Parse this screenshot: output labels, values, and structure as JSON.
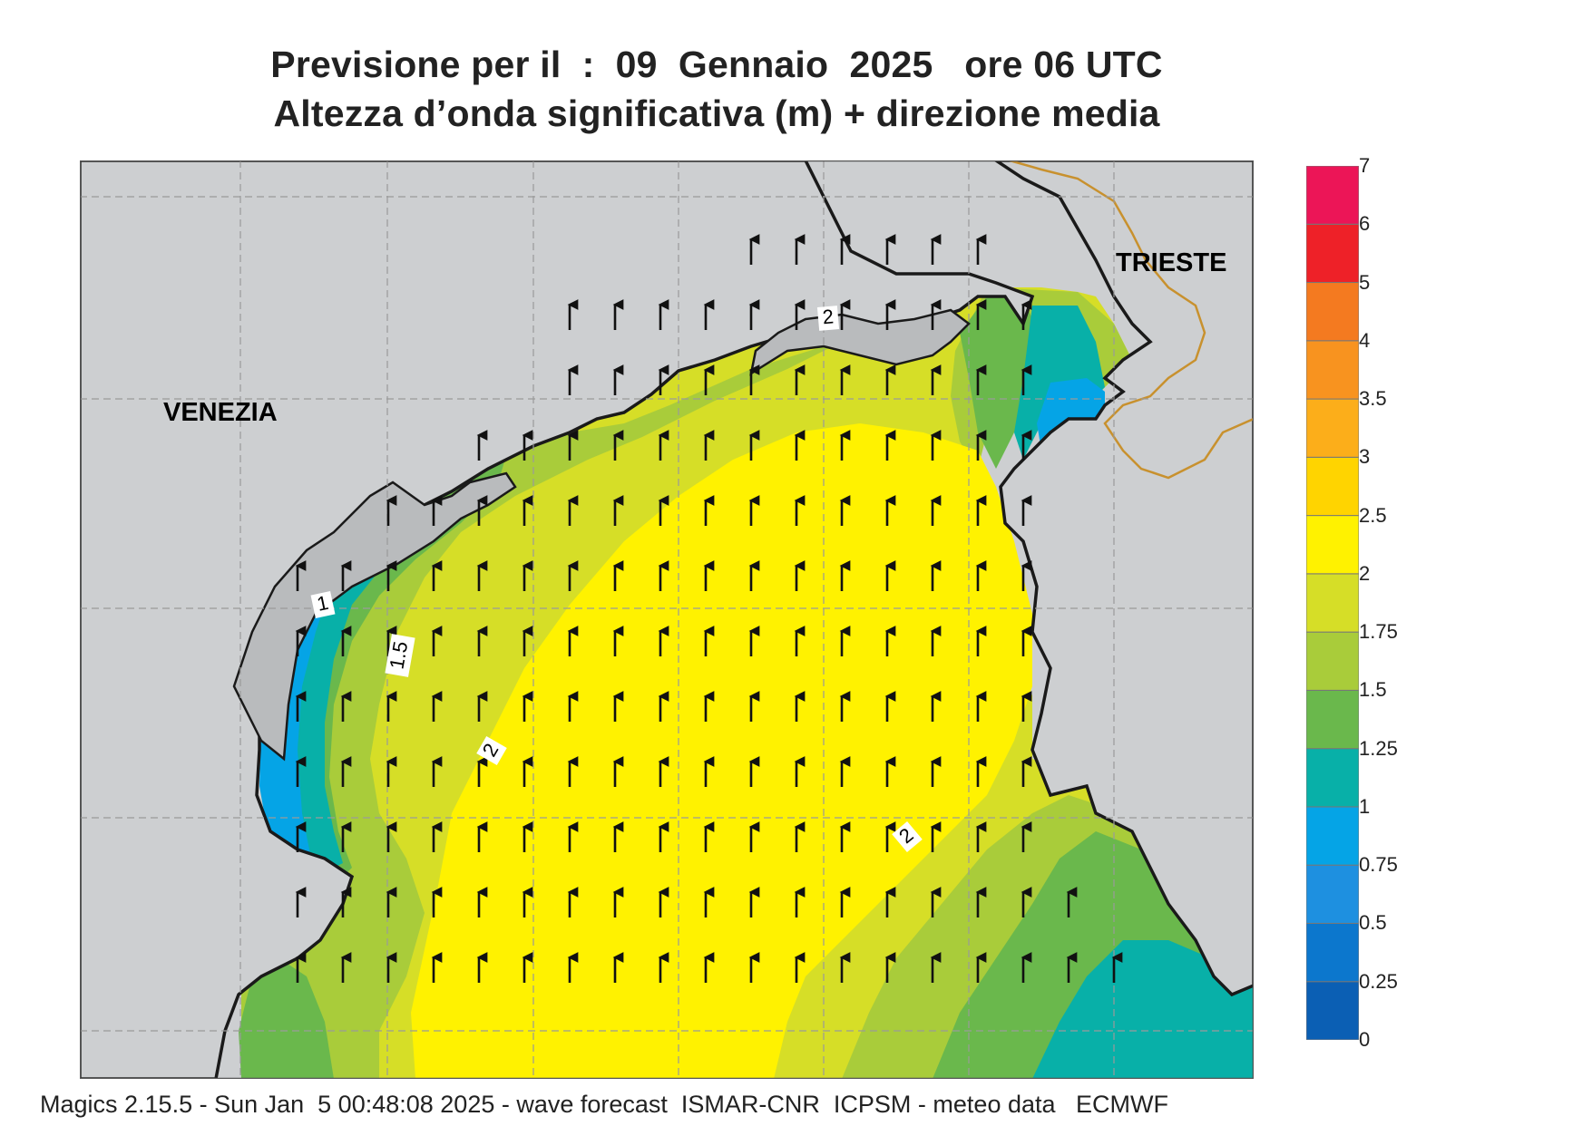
{
  "title_line1": "Previsione per il  :  09  Gennaio  2025   ore 06 UTC",
  "title_line2": "Altezza d’onda significativa (m) + direzione media",
  "footer": "Magics 2.15.5 - Sun Jan  5 00:48:08 2025 - wave forecast  ISMAR-CNR  ICPSM - meteo data   ECMWF",
  "cities": {
    "venezia": "VENEZIA",
    "trieste": "TRIESTE"
  },
  "contour_labels": [
    "1",
    "1.5",
    "2",
    "2",
    "2"
  ],
  "legend": {
    "labels": [
      "0",
      "0.25",
      "0.5",
      "0.75",
      "1",
      "1.25",
      "1.5",
      "1.75",
      "2",
      "2.5",
      "3",
      "3.5",
      "4",
      "5",
      "6",
      "7"
    ],
    "colors": [
      "#0b5fb4",
      "#0c77cd",
      "#1e90e0",
      "#05a4e6",
      "#08b0a8",
      "#6ab84c",
      "#a9cc3a",
      "#d6de27",
      "#fff200",
      "#ffd400",
      "#fcae1a",
      "#f8931f",
      "#f47a20",
      "#ee2128",
      "#ec1557"
    ]
  },
  "colors": {
    "land": "#cdcfd1",
    "coast": "#1a1a1a",
    "border": "#c8912e",
    "grid": "#9a9a9a",
    "arrow": "#111111"
  },
  "wave_direction": "north"
}
